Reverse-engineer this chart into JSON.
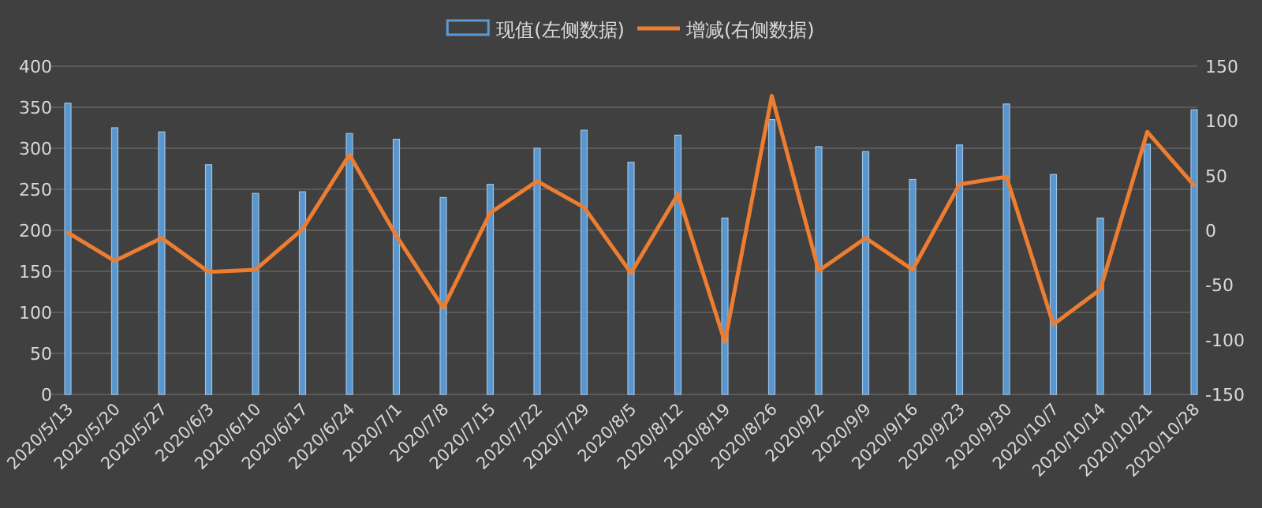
{
  "chart_data": {
    "type": "bar",
    "categories": [
      "2020/5/13",
      "2020/5/20",
      "2020/5/27",
      "2020/6/3",
      "2020/6/10",
      "2020/6/17",
      "2020/6/24",
      "2020/7/1",
      "2020/7/8",
      "2020/7/15",
      "2020/7/22",
      "2020/7/29",
      "2020/8/5",
      "2020/8/12",
      "2020/8/19",
      "2020/8/26",
      "2020/9/2",
      "2020/9/9",
      "2020/9/16",
      "2020/9/23",
      "2020/9/30",
      "2020/10/7",
      "2020/10/14",
      "2020/10/21",
      "2020/10/28"
    ],
    "series": [
      {
        "name": "现值(左侧数据)",
        "color": "#5b9bd5",
        "values": [
          355,
          325,
          320,
          280,
          245,
          247,
          318,
          311,
          240,
          256,
          300,
          322,
          283,
          316,
          215,
          335,
          302,
          296,
          262,
          304,
          354,
          268,
          215,
          305,
          347
        ]
      },
      {
        "name": "增减(右侧数据)",
        "type": "line",
        "axis": "y2",
        "color": "#ed7d31",
        "values": [
          -2,
          -28,
          -7,
          -38,
          -36,
          1,
          69,
          -5,
          -71,
          16,
          45,
          21,
          -39,
          33,
          -102,
          123,
          -37,
          -7,
          -36,
          42,
          49,
          -86,
          -54,
          90,
          41
        ]
      }
    ],
    "ylim": [
      0,
      400
    ],
    "yticks": [
      0,
      50,
      100,
      150,
      200,
      250,
      300,
      350,
      400
    ],
    "y2lim": [
      -150,
      150
    ],
    "y2ticks": [
      -150,
      -100,
      -50,
      0,
      50,
      100,
      150
    ],
    "grid": "y",
    "legend": "top"
  }
}
